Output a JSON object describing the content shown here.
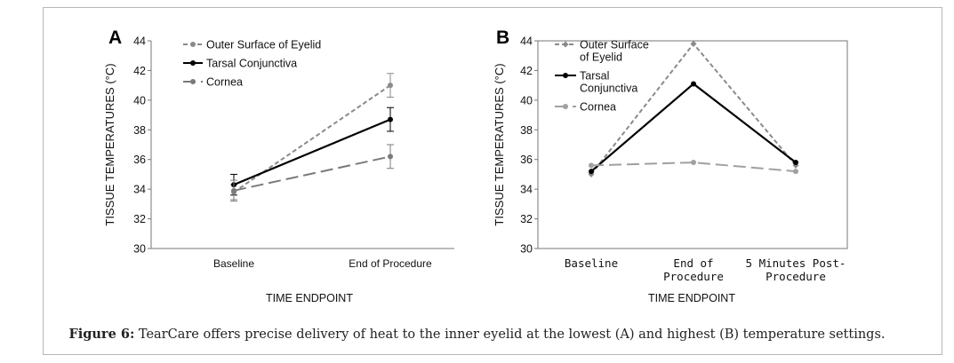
{
  "chart_data": [
    {
      "type": "line",
      "panel_label": "A",
      "xlabel": "TIME ENDPOINT",
      "ylabel": "TISSUE TEMPERATURES (°C)",
      "ylim": [
        30,
        44
      ],
      "yticks": [
        "30",
        "32",
        "34",
        "36",
        "38",
        "40",
        "42",
        "44"
      ],
      "categories": [
        "Baseline",
        "End of Procedure"
      ],
      "legend_position": "top-left",
      "series": [
        {
          "name": "Outer Surface of Eyelid",
          "values": [
            33.8,
            41.0
          ],
          "errors": [
            0.5,
            0.8
          ],
          "color": "#8a8a8a",
          "dash": "short",
          "marker": "circle"
        },
        {
          "name": "Tarsal Conjunctiva",
          "values": [
            34.3,
            38.7
          ],
          "errors": [
            0.7,
            0.8
          ],
          "color": "#000000",
          "dash": "solid",
          "marker": "circle"
        },
        {
          "name": "Cornea",
          "values": [
            33.9,
            36.2
          ],
          "errors": [
            0.7,
            0.8
          ],
          "color": "#7a7a7a",
          "dash": "long",
          "marker": "circle"
        }
      ]
    },
    {
      "type": "line",
      "panel_label": "B",
      "xlabel": "TIME ENDPOINT",
      "ylabel": "TISSUE TEMPERATURES (°C)",
      "ylim": [
        30,
        44
      ],
      "yticks": [
        "30",
        "32",
        "34",
        "36",
        "38",
        "40",
        "42",
        "44"
      ],
      "categories": [
        [
          "Baseline"
        ],
        [
          "End of",
          "Procedure"
        ],
        [
          "5 Minutes Post-",
          "Procedure"
        ]
      ],
      "legend_position": "top-left",
      "series": [
        {
          "name": "Outer Surface of Eyelid",
          "legend_lines": [
            "Outer Surface",
            "of Eyelid"
          ],
          "values": [
            35.0,
            43.8,
            35.6
          ],
          "color": "#8a8a8a",
          "dash": "short",
          "marker": "diamond"
        },
        {
          "name": "Tarsal Conjunctiva",
          "legend_lines": [
            "Tarsal",
            "Conjunctiva"
          ],
          "values": [
            35.2,
            41.1,
            35.8
          ],
          "color": "#000000",
          "dash": "solid",
          "marker": "circle"
        },
        {
          "name": "Cornea",
          "legend_lines": [
            "Cornea"
          ],
          "values": [
            35.6,
            35.8,
            35.2
          ],
          "color": "#a0a0a0",
          "dash": "long",
          "marker": "circle"
        }
      ]
    }
  ],
  "caption": {
    "label": "Figure 6:",
    "text": " TearCare offers precise delivery of heat to the inner eyelid at the lowest (A) and highest (B) temperature settings."
  }
}
